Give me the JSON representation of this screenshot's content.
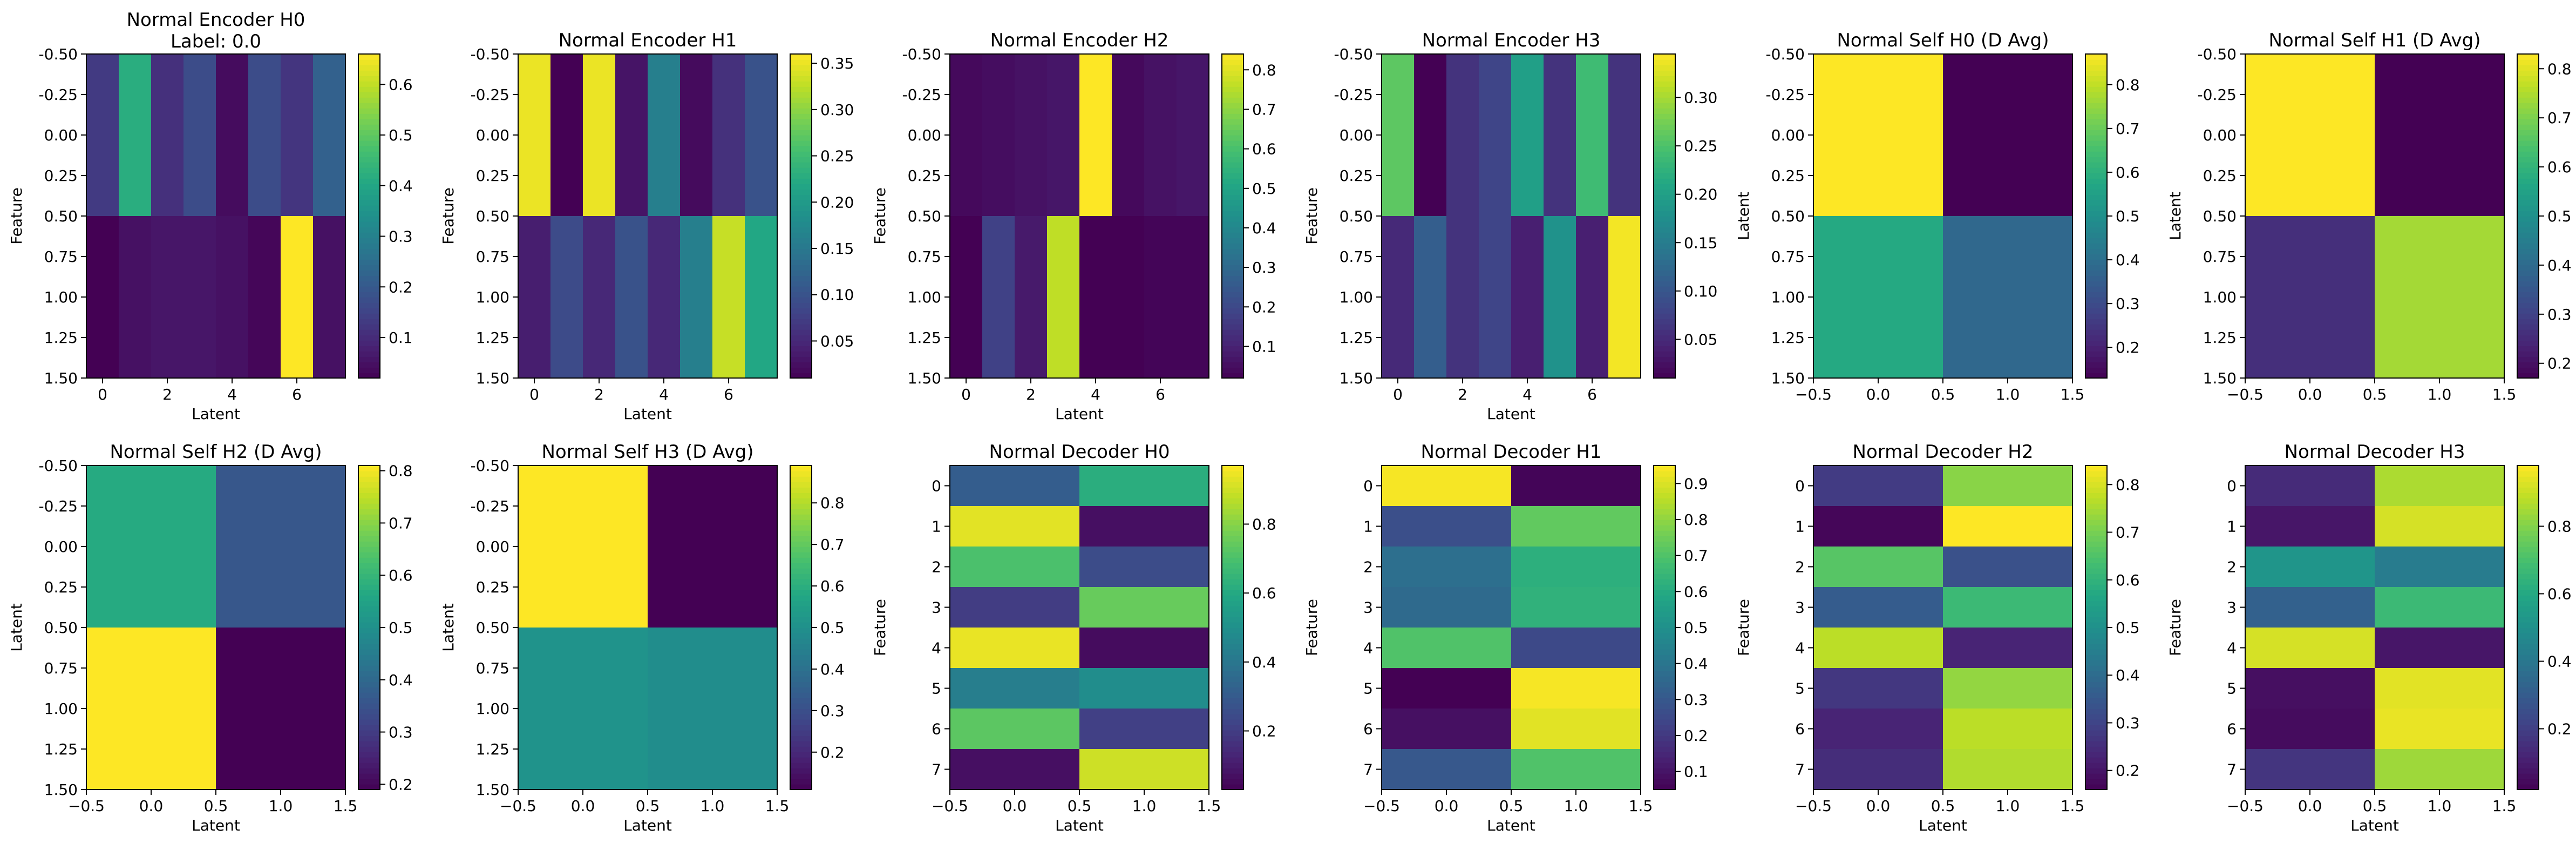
{
  "colormap": "viridis",
  "chart_data": [
    {
      "type": "heatmap",
      "title": "Normal Encoder H0\nLabel: 0.0",
      "xlabel": "Latent",
      "ylabel": "Feature",
      "xlim": [
        -0.5,
        7.5
      ],
      "ylim": [
        1.5,
        -0.5
      ],
      "xticks": [
        0,
        2,
        4,
        6
      ],
      "xticklabels": [
        "0",
        "2",
        "4",
        "6"
      ],
      "yticks": [
        -0.5,
        -0.25,
        0,
        0.25,
        0.5,
        0.75,
        1,
        1.25,
        1.5
      ],
      "yticklabels": [
        "-0.50",
        "-0.25",
        "0.00",
        "0.25",
        "0.50",
        "0.75",
        "1.00",
        "1.25",
        "1.50"
      ],
      "values": [
        [
          0.13,
          0.42,
          0.11,
          0.17,
          0.04,
          0.17,
          0.12,
          0.22
        ],
        [
          0.02,
          0.05,
          0.06,
          0.06,
          0.05,
          0.03,
          0.66,
          0.05
        ]
      ],
      "vmin": 0.02,
      "vmax": 0.66,
      "cbar_ticks": [
        0.1,
        0.2,
        0.3,
        0.4,
        0.5,
        0.6
      ],
      "cbar_ticklabels": [
        "0.1",
        "0.2",
        "0.3",
        "0.4",
        "0.5",
        "0.6"
      ]
    },
    {
      "type": "heatmap",
      "title": "Normal Encoder H1",
      "xlabel": "Latent",
      "ylabel": "Feature",
      "xlim": [
        -0.5,
        7.5
      ],
      "ylim": [
        1.5,
        -0.5
      ],
      "xticks": [
        0,
        2,
        4,
        6
      ],
      "xticklabels": [
        "0",
        "2",
        "4",
        "6"
      ],
      "yticks": [
        -0.5,
        -0.25,
        0,
        0.25,
        0.5,
        0.75,
        1,
        1.25,
        1.5
      ],
      "yticklabels": [
        "-0.50",
        "-0.25",
        "0.00",
        "0.25",
        "0.50",
        "0.75",
        "1.00",
        "1.25",
        "1.50"
      ],
      "values": [
        [
          0.35,
          0.01,
          0.35,
          0.03,
          0.16,
          0.02,
          0.06,
          0.1
        ],
        [
          0.04,
          0.09,
          0.05,
          0.1,
          0.05,
          0.16,
          0.33,
          0.22
        ]
      ],
      "vmin": 0.01,
      "vmax": 0.36,
      "cbar_ticks": [
        0.05,
        0.1,
        0.15,
        0.2,
        0.25,
        0.3,
        0.35
      ],
      "cbar_ticklabels": [
        "0.05",
        "0.10",
        "0.15",
        "0.20",
        "0.25",
        "0.30",
        "0.35"
      ]
    },
    {
      "type": "heatmap",
      "title": "Normal Encoder H2",
      "xlabel": "Latent",
      "ylabel": "Feature",
      "xlim": [
        -0.5,
        7.5
      ],
      "ylim": [
        1.5,
        -0.5
      ],
      "xticks": [
        0,
        2,
        4,
        6
      ],
      "xticklabels": [
        "0",
        "2",
        "4",
        "6"
      ],
      "yticks": [
        -0.5,
        -0.25,
        0,
        0.25,
        0.5,
        0.75,
        1,
        1.25,
        1.5
      ],
      "yticklabels": [
        "-0.50",
        "-0.25",
        "0.00",
        "0.25",
        "0.50",
        "0.75",
        "1.00",
        "1.25",
        "1.50"
      ],
      "values": [
        [
          0.04,
          0.05,
          0.06,
          0.07,
          0.84,
          0.04,
          0.06,
          0.07
        ],
        [
          0.02,
          0.18,
          0.08,
          0.76,
          0.02,
          0.02,
          0.03,
          0.03
        ]
      ],
      "vmin": 0.02,
      "vmax": 0.84,
      "cbar_ticks": [
        0.1,
        0.2,
        0.3,
        0.4,
        0.5,
        0.6,
        0.7,
        0.8
      ],
      "cbar_ticklabels": [
        "0.1",
        "0.2",
        "0.3",
        "0.4",
        "0.5",
        "0.6",
        "0.7",
        "0.8"
      ]
    },
    {
      "type": "heatmap",
      "title": "Normal Encoder H3",
      "xlabel": "Latent",
      "ylabel": "Feature",
      "xlim": [
        -0.5,
        7.5
      ],
      "ylim": [
        1.5,
        -0.5
      ],
      "xticks": [
        0,
        2,
        4,
        6
      ],
      "xticklabels": [
        "0",
        "2",
        "4",
        "6"
      ],
      "yticks": [
        -0.5,
        -0.25,
        0,
        0.25,
        0.5,
        0.75,
        1,
        1.25,
        1.5
      ],
      "yticklabels": [
        "-0.50",
        "-0.25",
        "0.00",
        "0.25",
        "0.50",
        "0.75",
        "1.00",
        "1.25",
        "1.50"
      ],
      "values": [
        [
          0.26,
          0.01,
          0.06,
          0.08,
          0.2,
          0.06,
          0.24,
          0.06
        ],
        [
          0.05,
          0.11,
          0.06,
          0.08,
          0.04,
          0.18,
          0.04,
          0.34
        ]
      ],
      "vmin": 0.01,
      "vmax": 0.345,
      "cbar_ticks": [
        0.05,
        0.1,
        0.15,
        0.2,
        0.25,
        0.3
      ],
      "cbar_ticklabels": [
        "0.05",
        "0.10",
        "0.15",
        "0.20",
        "0.25",
        "0.30"
      ]
    },
    {
      "type": "heatmap",
      "title": "Normal Self H0 (D Avg)",
      "xlabel": "",
      "ylabel": "Latent",
      "xlim": [
        -0.5,
        1.5
      ],
      "ylim": [
        1.5,
        -0.5
      ],
      "xticks": [
        -0.5,
        0,
        0.5,
        1,
        1.5
      ],
      "xticklabels": [
        "−0.5",
        "0.0",
        "0.5",
        "1.0",
        "1.5"
      ],
      "yticks": [
        -0.5,
        -0.25,
        0,
        0.25,
        0.5,
        0.75,
        1,
        1.25,
        1.5
      ],
      "yticklabels": [
        "-0.50",
        "-0.25",
        "0.00",
        "0.25",
        "0.50",
        "0.75",
        "1.00",
        "1.25",
        "1.50"
      ],
      "values": [
        [
          0.87,
          0.13
        ],
        [
          0.58,
          0.38
        ]
      ],
      "vmin": 0.13,
      "vmax": 0.87,
      "cbar_ticks": [
        0.2,
        0.3,
        0.4,
        0.5,
        0.6,
        0.7,
        0.8
      ],
      "cbar_ticklabels": [
        "0.2",
        "0.3",
        "0.4",
        "0.5",
        "0.6",
        "0.7",
        "0.8"
      ]
    },
    {
      "type": "heatmap",
      "title": "Normal Self H1 (D Avg)",
      "xlabel": "",
      "ylabel": "Latent",
      "xlim": [
        -0.5,
        1.5
      ],
      "ylim": [
        1.5,
        -0.5
      ],
      "xticks": [
        -0.5,
        0,
        0.5,
        1,
        1.5
      ],
      "xticklabels": [
        "−0.5",
        "0.0",
        "0.5",
        "1.0",
        "1.5"
      ],
      "yticks": [
        -0.5,
        -0.25,
        0,
        0.25,
        0.5,
        0.75,
        1,
        1.25,
        1.5
      ],
      "yticklabels": [
        "-0.50",
        "-0.25",
        "0.00",
        "0.25",
        "0.50",
        "0.75",
        "1.00",
        "1.25",
        "1.50"
      ],
      "values": [
        [
          0.83,
          0.17
        ],
        [
          0.26,
          0.74
        ]
      ],
      "vmin": 0.17,
      "vmax": 0.83,
      "cbar_ticks": [
        0.2,
        0.3,
        0.4,
        0.5,
        0.6,
        0.7,
        0.8
      ],
      "cbar_ticklabels": [
        "0.2",
        "0.3",
        "0.4",
        "0.5",
        "0.6",
        "0.7",
        "0.8"
      ]
    },
    {
      "type": "heatmap",
      "title": "Normal Self H2 (D Avg)",
      "xlabel": "Latent",
      "ylabel": "Latent",
      "xlim": [
        -0.5,
        1.5
      ],
      "ylim": [
        1.5,
        -0.5
      ],
      "xticks": [
        -0.5,
        0,
        0.5,
        1,
        1.5
      ],
      "xticklabels": [
        "−0.5",
        "0.0",
        "0.5",
        "1.0",
        "1.5"
      ],
      "yticks": [
        -0.5,
        -0.25,
        0,
        0.25,
        0.5,
        0.75,
        1,
        1.25,
        1.5
      ],
      "yticklabels": [
        "-0.50",
        "-0.25",
        "0.00",
        "0.25",
        "0.50",
        "0.75",
        "1.00",
        "1.25",
        "1.50"
      ],
      "values": [
        [
          0.57,
          0.36
        ],
        [
          0.81,
          0.19
        ]
      ],
      "vmin": 0.19,
      "vmax": 0.81,
      "cbar_ticks": [
        0.2,
        0.3,
        0.4,
        0.5,
        0.6,
        0.7,
        0.8
      ],
      "cbar_ticklabels": [
        "0.2",
        "0.3",
        "0.4",
        "0.5",
        "0.6",
        "0.7",
        "0.8"
      ]
    },
    {
      "type": "heatmap",
      "title": "Normal Self H3 (D Avg)",
      "xlabel": "Latent",
      "ylabel": "Latent",
      "xlim": [
        -0.5,
        1.5
      ],
      "ylim": [
        1.5,
        -0.5
      ],
      "xticks": [
        -0.5,
        0,
        0.5,
        1,
        1.5
      ],
      "xticklabels": [
        "−0.5",
        "0.0",
        "0.5",
        "1.0",
        "1.5"
      ],
      "yticks": [
        -0.5,
        -0.25,
        0,
        0.25,
        0.5,
        0.75,
        1,
        1.25,
        1.5
      ],
      "yticklabels": [
        "-0.50",
        "-0.25",
        "0.00",
        "0.25",
        "0.50",
        "0.75",
        "1.00",
        "1.25",
        "1.50"
      ],
      "values": [
        [
          0.89,
          0.11
        ],
        [
          0.51,
          0.49
        ]
      ],
      "vmin": 0.11,
      "vmax": 0.89,
      "cbar_ticks": [
        0.2,
        0.3,
        0.4,
        0.5,
        0.6,
        0.7,
        0.8
      ],
      "cbar_ticklabels": [
        "0.2",
        "0.3",
        "0.4",
        "0.5",
        "0.6",
        "0.7",
        "0.8"
      ]
    },
    {
      "type": "heatmap",
      "title": "Normal Decoder H0",
      "xlabel": "Latent",
      "ylabel": "Feature",
      "xlim": [
        -0.5,
        1.5
      ],
      "ylim": [
        7.5,
        -0.5
      ],
      "xticks": [
        -0.5,
        0,
        0.5,
        1,
        1.5
      ],
      "xticklabels": [
        "−0.5",
        "0.0",
        "0.5",
        "1.0",
        "1.5"
      ],
      "yticks": [
        0,
        1,
        2,
        3,
        4,
        5,
        6,
        7
      ],
      "yticklabels": [
        "0",
        "1",
        "2",
        "3",
        "4",
        "5",
        "6",
        "7"
      ],
      "values": [
        [
          0.31,
          0.62
        ],
        [
          0.93,
          0.07
        ],
        [
          0.7,
          0.25
        ],
        [
          0.2,
          0.75
        ],
        [
          0.94,
          0.06
        ],
        [
          0.43,
          0.49
        ],
        [
          0.73,
          0.21
        ],
        [
          0.07,
          0.9
        ]
      ],
      "vmin": 0.03,
      "vmax": 0.97,
      "cbar_ticks": [
        0.2,
        0.4,
        0.6,
        0.8
      ],
      "cbar_ticklabels": [
        "0.2",
        "0.4",
        "0.6",
        "0.8"
      ]
    },
    {
      "type": "heatmap",
      "title": "Normal Decoder H1",
      "xlabel": "Latent",
      "ylabel": "Feature",
      "xlim": [
        -0.5,
        1.5
      ],
      "ylim": [
        7.5,
        -0.5
      ],
      "xticks": [
        -0.5,
        0,
        0.5,
        1,
        1.5
      ],
      "xticklabels": [
        "−0.5",
        "0.0",
        "0.5",
        "1.0",
        "1.5"
      ],
      "yticks": [
        0,
        1,
        2,
        3,
        4,
        5,
        6,
        7
      ],
      "yticklabels": [
        "0",
        "1",
        "2",
        "3",
        "4",
        "5",
        "6",
        "7"
      ],
      "values": [
        [
          0.94,
          0.06
        ],
        [
          0.27,
          0.73
        ],
        [
          0.38,
          0.62
        ],
        [
          0.36,
          0.63
        ],
        [
          0.7,
          0.25
        ],
        [
          0.05,
          0.94
        ],
        [
          0.09,
          0.91
        ],
        [
          0.3,
          0.7
        ]
      ],
      "vmin": 0.05,
      "vmax": 0.95,
      "cbar_ticks": [
        0.1,
        0.2,
        0.3,
        0.4,
        0.5,
        0.6,
        0.7,
        0.8,
        0.9
      ],
      "cbar_ticklabels": [
        "0.1",
        "0.2",
        "0.3",
        "0.4",
        "0.5",
        "0.6",
        "0.7",
        "0.8",
        "0.9"
      ]
    },
    {
      "type": "heatmap",
      "title": "Normal Decoder H2",
      "xlabel": "Latent",
      "ylabel": "Feature",
      "xlim": [
        -0.5,
        1.5
      ],
      "ylim": [
        7.5,
        -0.5
      ],
      "xticks": [
        -0.5,
        0,
        0.5,
        1,
        1.5
      ],
      "xticklabels": [
        "−0.5",
        "0.0",
        "0.5",
        "1.0",
        "1.5"
      ],
      "yticks": [
        0,
        1,
        2,
        3,
        4,
        5,
        6,
        7
      ],
      "yticklabels": [
        "0",
        "1",
        "2",
        "3",
        "4",
        "5",
        "6",
        "7"
      ],
      "values": [
        [
          0.28,
          0.72
        ],
        [
          0.17,
          0.84
        ],
        [
          0.66,
          0.33
        ],
        [
          0.36,
          0.62
        ],
        [
          0.77,
          0.23
        ],
        [
          0.27,
          0.73
        ],
        [
          0.23,
          0.77
        ],
        [
          0.25,
          0.76
        ]
      ],
      "vmin": 0.16,
      "vmax": 0.84,
      "cbar_ticks": [
        0.2,
        0.3,
        0.4,
        0.5,
        0.6,
        0.7,
        0.8
      ],
      "cbar_ticklabels": [
        "0.2",
        "0.3",
        "0.4",
        "0.5",
        "0.6",
        "0.7",
        "0.8"
      ]
    },
    {
      "type": "heatmap",
      "title": "Normal Decoder H3",
      "xlabel": "Latent",
      "ylabel": "Feature",
      "xlim": [
        -0.5,
        1.5
      ],
      "ylim": [
        7.5,
        -0.5
      ],
      "xticks": [
        -0.5,
        0,
        0.5,
        1,
        1.5
      ],
      "xticklabels": [
        "−0.5",
        "0.0",
        "0.5",
        "1.0",
        "1.5"
      ],
      "yticks": [
        0,
        1,
        2,
        3,
        4,
        5,
        6,
        7
      ],
      "yticklabels": [
        "0",
        "1",
        "2",
        "3",
        "4",
        "5",
        "6",
        "7"
      ],
      "values": [
        [
          0.14,
          0.86
        ],
        [
          0.08,
          0.92
        ],
        [
          0.52,
          0.42
        ],
        [
          0.32,
          0.67
        ],
        [
          0.92,
          0.08
        ],
        [
          0.06,
          0.94
        ],
        [
          0.05,
          0.95
        ],
        [
          0.17,
          0.84
        ]
      ],
      "vmin": 0.02,
      "vmax": 0.98,
      "cbar_ticks": [
        0.2,
        0.4,
        0.6,
        0.8
      ],
      "cbar_ticklabels": [
        "0.2",
        "0.4",
        "0.6",
        "0.8"
      ]
    }
  ]
}
